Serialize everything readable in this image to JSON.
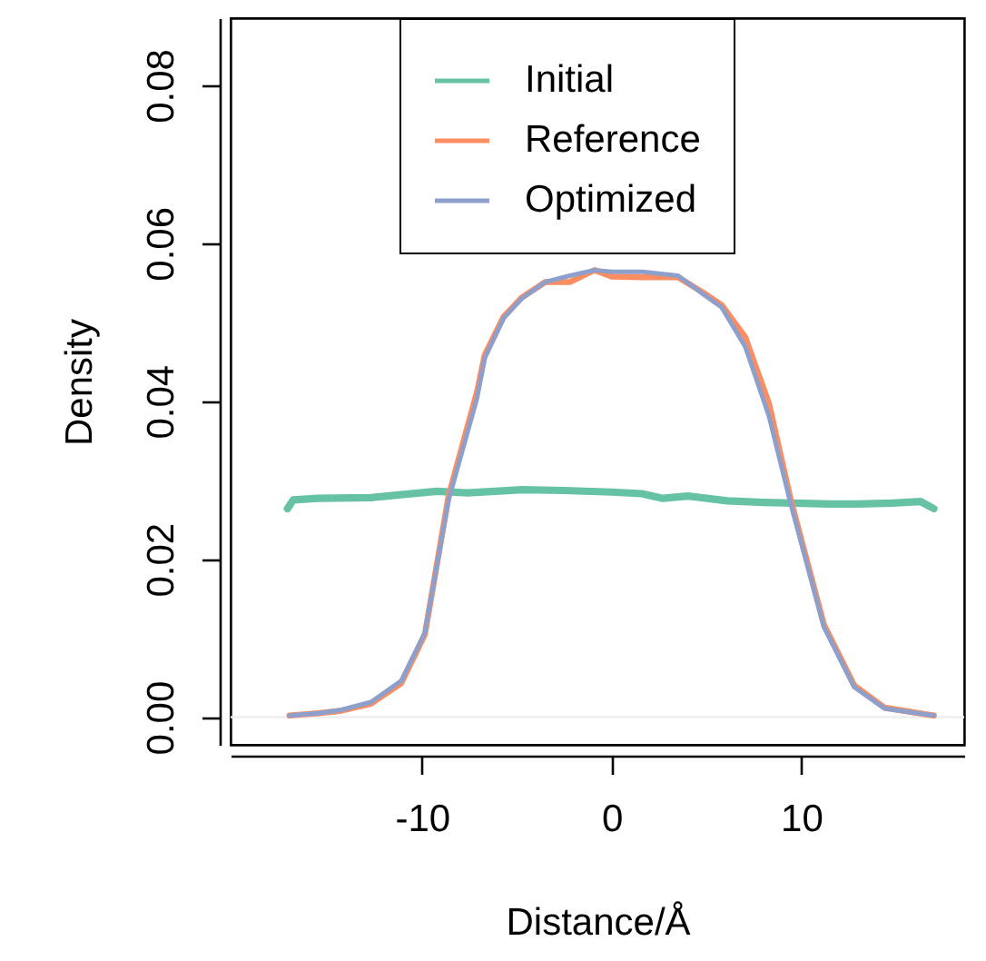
{
  "chart_data": {
    "type": "line",
    "xlabel": "Distance/Å",
    "ylabel": "Density",
    "xlim": [
      -20.1,
      18.6
    ],
    "ylim": [
      -0.0035,
      0.0885
    ],
    "xticks": [
      -10,
      0,
      10
    ],
    "yticks": [
      {
        "value": 0,
        "label": "0.00"
      },
      {
        "value": 0.02,
        "label": "0.02"
      },
      {
        "value": 0.04,
        "label": "0.04"
      },
      {
        "value": 0.06,
        "label": "0.06"
      },
      {
        "value": 0.08,
        "label": "0.08"
      }
    ],
    "grid": false,
    "legend": "top",
    "line_style": "solid",
    "marker": "none",
    "ref_lines": [
      {
        "axis": "y",
        "value": 0,
        "label": null,
        "color": "#eeeeee"
      }
    ],
    "series": [
      {
        "name": "Initial",
        "color": "#66c2a5",
        "x": [
          -17.1,
          -16.8,
          -15.5,
          -12.7,
          -11,
          -9.2,
          -7.6,
          -4.7,
          -2.5,
          0,
          1.6,
          2.7,
          4,
          6.1,
          8,
          9.6,
          11.5,
          13,
          14.8,
          16.3,
          17
        ],
        "values": [
          0.0264,
          0.0275,
          0.0277,
          0.0278,
          0.0282,
          0.0286,
          0.0284,
          0.0288,
          0.0287,
          0.0285,
          0.0283,
          0.0277,
          0.028,
          0.0274,
          0.0272,
          0.0271,
          0.027,
          0.027,
          0.0271,
          0.0273,
          0.0264
        ]
      },
      {
        "name": "Reference",
        "color": "#fc8d62",
        "x": [
          -17,
          -15.5,
          -14.3,
          -12.7,
          -11.1,
          -9.85,
          -8.6,
          -7.1,
          -6.7,
          -5.7,
          -4.75,
          -3.5,
          -2.2,
          -0.9,
          0,
          1.6,
          3.5,
          4.8,
          5.8,
          7.05,
          8.3,
          9.45,
          11.2,
          12.8,
          14.4,
          17
        ],
        "values": [
          0.0002,
          0.0005,
          0.0008,
          0.0017,
          0.0043,
          0.0105,
          0.028,
          0.0412,
          0.0458,
          0.0507,
          0.0531,
          0.0551,
          0.0551,
          0.0566,
          0.0558,
          0.0557,
          0.0557,
          0.0538,
          0.0522,
          0.0481,
          0.0397,
          0.0275,
          0.0117,
          0.004,
          0.0012,
          0.0002
        ]
      },
      {
        "name": "Optimized",
        "color": "#8da0cb",
        "x": [
          -17,
          -15.5,
          -14.3,
          -12.7,
          -11.1,
          -9.85,
          -8.6,
          -7.1,
          -6.7,
          -5.7,
          -4.75,
          -3.5,
          -2.2,
          -0.9,
          0,
          1.6,
          3.5,
          4.8,
          5.8,
          7.05,
          8.3,
          9.45,
          11.2,
          12.8,
          14.4,
          17
        ],
        "values": [
          0.0002,
          0.0005,
          0.0009,
          0.0019,
          0.0046,
          0.0107,
          0.0275,
          0.0404,
          0.0454,
          0.0505,
          0.053,
          0.0551,
          0.0559,
          0.0566,
          0.0564,
          0.0564,
          0.0559,
          0.0536,
          0.0519,
          0.0469,
          0.0381,
          0.027,
          0.0114,
          0.0038,
          0.0011,
          0.0002
        ]
      }
    ]
  }
}
